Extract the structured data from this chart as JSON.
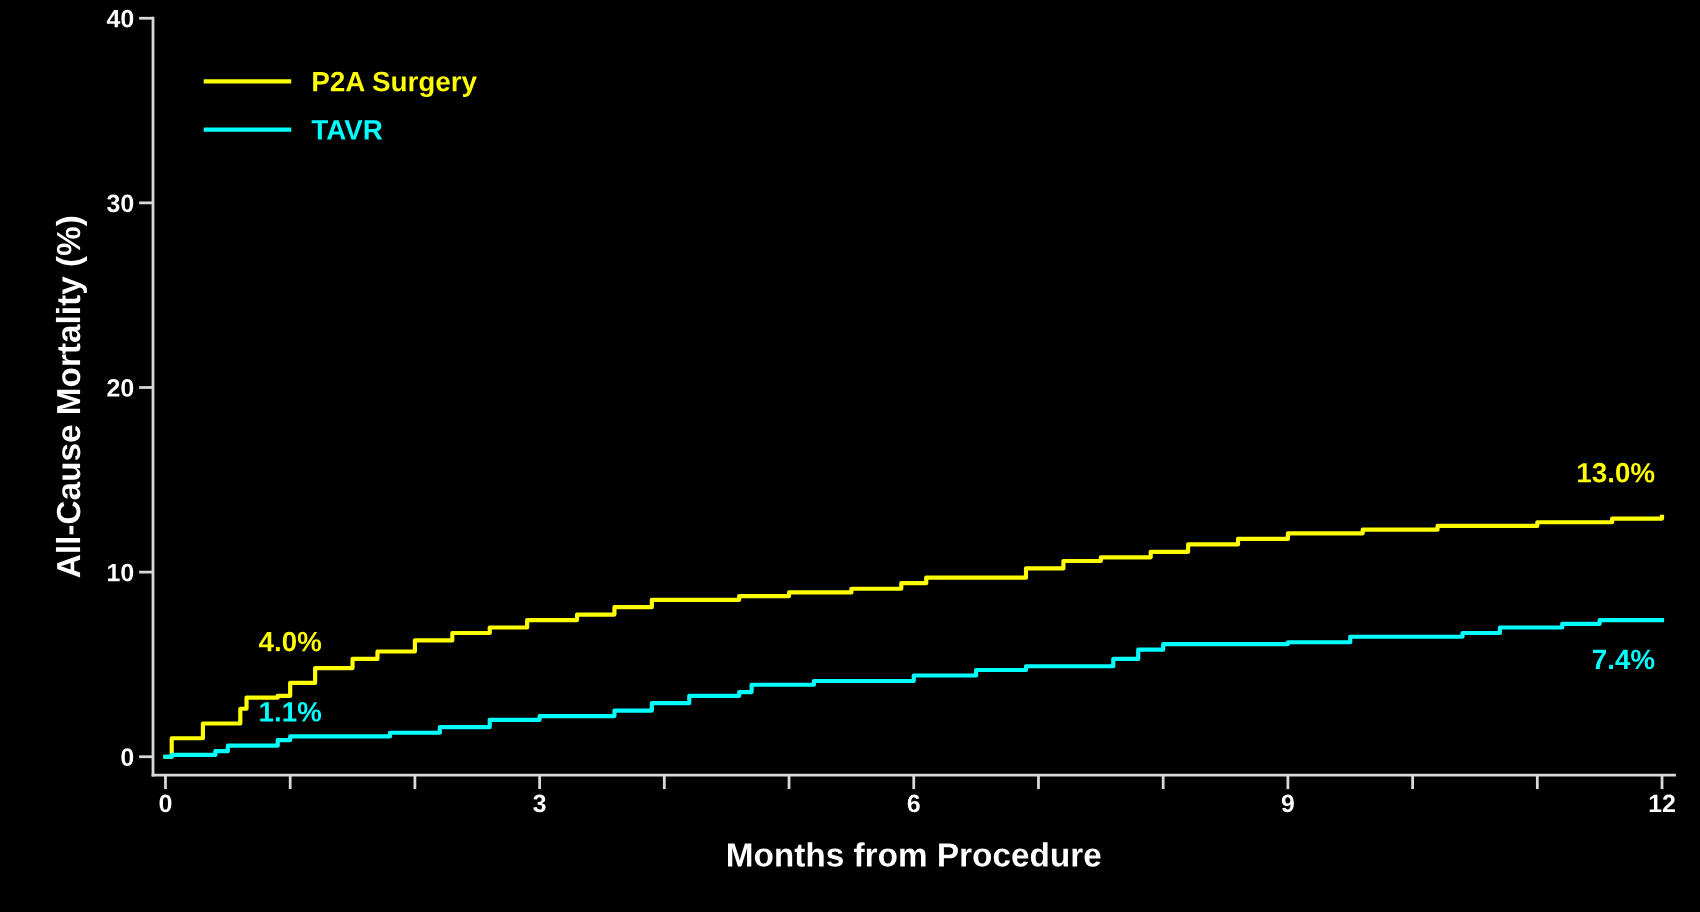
{
  "chart_data": {
    "type": "step",
    "xlabel": "Months from Procedure",
    "ylabel": "All-Cause Mortality (%)",
    "xlim": [
      -0.1,
      12.1
    ],
    "ylim": [
      -1,
      40
    ],
    "xticks": [
      0,
      {
        "value": 1,
        "label": null
      },
      {
        "value": 2,
        "label": null
      },
      3,
      {
        "value": 4,
        "label": null
      },
      {
        "value": 5,
        "label": null
      },
      6,
      {
        "value": 7,
        "label": null
      },
      {
        "value": 8,
        "label": null
      },
      9,
      {
        "value": 10,
        "label": null
      },
      {
        "value": 11,
        "label": null
      },
      12
    ],
    "yticks": [
      0,
      10,
      20,
      30,
      40
    ],
    "grid": false,
    "legend": "top left",
    "series": [
      {
        "name": "P2A Surgery",
        "color": "#ffff00",
        "x": [
          0,
          0.05,
          0.3,
          0.6,
          0.65,
          0.9,
          1.0,
          1.2,
          1.5,
          1.7,
          2.0,
          2.3,
          2.6,
          2.9,
          3.3,
          3.6,
          3.9,
          4.6,
          5.0,
          5.5,
          5.9,
          6.1,
          6.9,
          7.2,
          7.5,
          7.9,
          8.2,
          8.6,
          9.0,
          9.6,
          10.2,
          11.0,
          11.6,
          12.0
        ],
        "values": [
          0,
          1.0,
          1.8,
          2.6,
          3.2,
          3.3,
          4.0,
          4.8,
          5.3,
          5.7,
          6.3,
          6.7,
          7.0,
          7.4,
          7.7,
          8.1,
          8.5,
          8.7,
          8.9,
          9.1,
          9.4,
          9.7,
          10.2,
          10.6,
          10.8,
          11.1,
          11.5,
          11.8,
          12.1,
          12.3,
          12.5,
          12.7,
          12.9,
          13.0
        ],
        "value_labels": [
          null,
          null,
          null,
          null,
          null,
          null,
          "4.0%",
          null,
          null,
          null,
          null,
          null,
          null,
          null,
          null,
          null,
          null,
          null,
          null,
          null,
          null,
          null,
          null,
          null,
          null,
          null,
          null,
          null,
          null,
          null,
          null,
          null,
          null,
          "13.0%"
        ]
      },
      {
        "name": "TAVR",
        "color": "#00ffff",
        "x": [
          0,
          0.05,
          0.4,
          0.5,
          0.9,
          1.0,
          1.8,
          2.2,
          2.6,
          3.0,
          3.6,
          3.9,
          4.2,
          4.6,
          4.7,
          5.2,
          6.0,
          6.5,
          6.9,
          7.6,
          7.8,
          8.0,
          9.0,
          9.5,
          10.4,
          10.7,
          11.2,
          11.5,
          12.0
        ],
        "values": [
          0,
          0.1,
          0.3,
          0.6,
          0.9,
          1.1,
          1.3,
          1.6,
          2.0,
          2.2,
          2.5,
          2.9,
          3.3,
          3.5,
          3.9,
          4.1,
          4.4,
          4.7,
          4.9,
          5.3,
          5.8,
          6.1,
          6.2,
          6.5,
          6.7,
          7.0,
          7.2,
          7.4,
          7.4
        ],
        "value_labels": [
          null,
          null,
          null,
          null,
          null,
          "1.1%",
          null,
          null,
          null,
          null,
          null,
          null,
          null,
          null,
          null,
          null,
          null,
          null,
          null,
          null,
          null,
          null,
          null,
          null,
          null,
          null,
          null,
          null,
          "7.4%"
        ]
      }
    ]
  }
}
